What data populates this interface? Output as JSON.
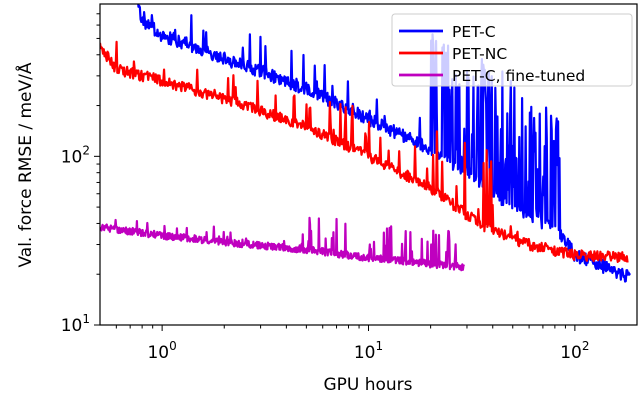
{
  "chart_data": {
    "type": "line",
    "title": "",
    "xlabel": "GPU hours",
    "ylabel": "Val. force RMSE / meV/Å",
    "xscale": "log",
    "yscale": "log",
    "xlim": [
      0.5,
      200
    ],
    "ylim": [
      10,
      800
    ],
    "x_ticks": [
      {
        "value": 1,
        "label_base": "10",
        "label_exp": "0"
      },
      {
        "value": 10,
        "label_base": "10",
        "label_exp": "1"
      },
      {
        "value": 100,
        "label_base": "10",
        "label_exp": "2"
      }
    ],
    "y_ticks": [
      {
        "value": 10,
        "label_base": "10",
        "label_exp": "1"
      },
      {
        "value": 100,
        "label_base": "10",
        "label_exp": "2"
      }
    ],
    "grid": false,
    "legend_position": "top-right",
    "series": [
      {
        "name": "PET-C",
        "color": "#0000ff",
        "noise": 0.18,
        "spikes": [
          {
            "from": 0.7,
            "to": 2,
            "amp": 1.5,
            "rate": 0.06
          },
          {
            "from": 2,
            "to": 20,
            "amp": 1.6,
            "rate": 0.06
          },
          {
            "from": 20,
            "to": 85,
            "amp": 5.5,
            "rate": 0.5
          },
          {
            "from": 85,
            "to": 185,
            "amp": 1.2,
            "rate": 0.03
          }
        ],
        "points": [
          [
            0.75,
            900
          ],
          [
            0.8,
            640
          ],
          [
            1.0,
            520
          ],
          [
            1.5,
            440
          ],
          [
            2,
            380
          ],
          [
            3,
            320
          ],
          [
            5,
            250
          ],
          [
            8,
            190
          ],
          [
            12,
            150
          ],
          [
            20,
            110
          ],
          [
            30,
            80
          ],
          [
            45,
            55
          ],
          [
            60,
            45
          ],
          [
            85,
            35
          ],
          [
            100,
            26
          ],
          [
            140,
            22
          ],
          [
            185,
            19
          ]
        ]
      },
      {
        "name": "PET-NC",
        "color": "#ff0000",
        "noise": 0.15,
        "spikes": [
          {
            "from": 0.5,
            "to": 4,
            "amp": 1.5,
            "rate": 0.06
          },
          {
            "from": 4,
            "to": 20,
            "amp": 1.7,
            "rate": 0.08
          },
          {
            "from": 20,
            "to": 40,
            "amp": 3.0,
            "rate": 0.18
          },
          {
            "from": 40,
            "to": 60,
            "amp": 1.2,
            "rate": 0.05
          }
        ],
        "points": [
          [
            0.5,
            450
          ],
          [
            0.6,
            330
          ],
          [
            1,
            280
          ],
          [
            2,
            220
          ],
          [
            5,
            150
          ],
          [
            10,
            100
          ],
          [
            20,
            65
          ],
          [
            30,
            45
          ],
          [
            40,
            36
          ],
          [
            60,
            30
          ],
          [
            100,
            26
          ],
          [
            180,
            25
          ]
        ]
      },
      {
        "name": "PET-C, fine-tuned",
        "color": "#bf00bf",
        "noise": 0.1,
        "spikes": [
          {
            "from": 0.5,
            "to": 5,
            "amp": 1.2,
            "rate": 0.05
          },
          {
            "from": 5,
            "to": 29,
            "amp": 1.6,
            "rate": 0.15
          }
        ],
        "points": [
          [
            0.5,
            38
          ],
          [
            0.7,
            36
          ],
          [
            1,
            34
          ],
          [
            2,
            31
          ],
          [
            5,
            28
          ],
          [
            10,
            25
          ],
          [
            20,
            23
          ],
          [
            29,
            22
          ]
        ]
      }
    ]
  }
}
